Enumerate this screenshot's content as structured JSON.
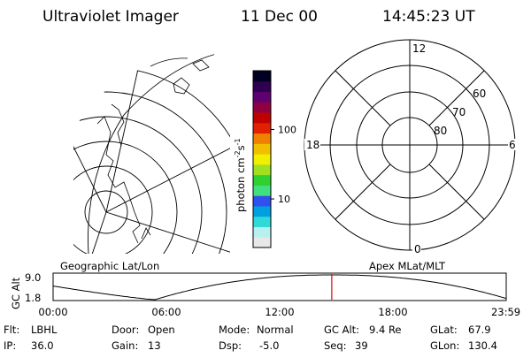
{
  "header": {
    "instrument": "Ultraviolet Imager",
    "date": "11 Dec 00",
    "time": "14:45:23 UT"
  },
  "colorbar": {
    "label": "photon cm",
    "label_sup1": "-2",
    "label_mid": "s",
    "label_sup2": "-1",
    "ticks": [
      {
        "value": 100,
        "label": "100"
      },
      {
        "value": 10,
        "label": "10"
      }
    ],
    "range": [
      2,
      700
    ],
    "colors": [
      "#e8e8e8",
      "#b8f0f0",
      "#30d8d8",
      "#00a0e0",
      "#3050f0",
      "#40e080",
      "#30d030",
      "#a0e020",
      "#f0f000",
      "#f0c000",
      "#f08000",
      "#e02000",
      "#c00000",
      "#900040",
      "#600070",
      "#300050",
      "#000020"
    ]
  },
  "geo_map": {
    "label": "Geographic Lat/Lon"
  },
  "polar_plot": {
    "label": "Apex MLat/MLT",
    "mlt_labels": {
      "top": "12",
      "left": "18",
      "right": "6",
      "bottom": "0"
    },
    "mlat_rings": [
      "60",
      "70",
      "80"
    ]
  },
  "altitude_strip": {
    "ylabel": "GC Alt",
    "yticks": [
      "9.0",
      "1.8"
    ],
    "xticks": [
      "00:00",
      "06:00",
      "12:00",
      "18:00",
      "23:59"
    ],
    "current_time_hours": 14.76,
    "marker_color": "#e00000"
  },
  "status": {
    "flt_label": "Flt:",
    "flt_value": "LBHL",
    "ip_label": "IP:",
    "ip_value": "36.0",
    "door_label": "Door:",
    "door_value": "Open",
    "gain_label": "Gain:",
    "gain_value": "13",
    "mode_label": "Mode:",
    "mode_value": "Normal",
    "dsp_label": "Dsp:",
    "dsp_value": "-5.0",
    "gcalt_label": "GC Alt:",
    "gcalt_value": "9.4 Re",
    "seq_label": "Seq:",
    "seq_value": "39",
    "glat_label": "GLat:",
    "glat_value": "67.9",
    "glon_label": "GLon:",
    "glon_value": "130.4"
  }
}
